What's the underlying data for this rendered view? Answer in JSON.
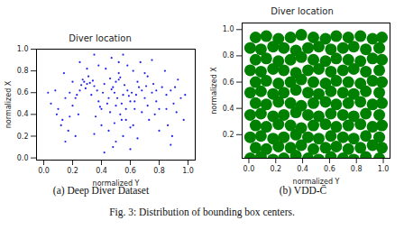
{
  "chart_data": [
    {
      "type": "scatter",
      "title": "Diver location",
      "caption": "(a) Deep Diver Dataset",
      "xlabel": "normalized Y",
      "ylabel": "normalized X",
      "color": "#2222ee",
      "xlim": [
        -0.05,
        1.05
      ],
      "ylim": [
        -0.02,
        1.0
      ],
      "xticks": [
        {
          "value": 0,
          "label": "0.0"
        },
        {
          "value": 0.2,
          "label": "0.2"
        },
        {
          "value": 0.4,
          "label": "0.4"
        },
        {
          "value": 0.6,
          "label": "0.6"
        },
        {
          "value": 0.8,
          "label": "0.8"
        },
        {
          "value": 1,
          "label": "1.0"
        }
      ],
      "yticks": [
        {
          "value": 0,
          "label": "0.0"
        },
        {
          "value": 0.2,
          "label": "0.2"
        },
        {
          "value": 0.4,
          "label": "0.4"
        },
        {
          "value": 0.6,
          "label": "0.6"
        },
        {
          "value": 0.8,
          "label": "0.8"
        },
        {
          "value": 1,
          "label": "1.0"
        }
      ],
      "x": [
        0.52,
        0.48,
        0.55,
        0.6,
        0.45,
        0.5,
        0.58,
        0.42,
        0.63,
        0.53,
        0.3,
        0.28,
        0.35,
        0.25,
        0.33,
        0.38,
        0.22,
        0.4,
        0.36,
        0.31,
        0.7,
        0.72,
        0.75,
        0.68,
        0.78,
        0.66,
        0.8,
        0.73,
        0.85,
        0.62,
        0.1,
        0.15,
        0.08,
        0.18,
        0.12,
        0.05,
        0.2,
        0.14,
        0.17,
        0.09,
        0.9,
        0.88,
        0.92,
        0.95,
        0.86,
        0.93,
        0.84,
        0.97,
        0.89,
        0.91,
        0.45,
        0.55,
        0.5,
        0.4,
        0.6,
        0.35,
        0.65,
        0.48,
        0.57,
        0.43,
        0.52,
        0.58,
        0.47,
        0.62,
        0.38,
        0.3,
        0.7,
        0.25,
        0.75,
        0.55,
        0.5,
        0.53,
        0.49,
        0.56,
        0.51,
        0.47,
        0.54,
        0.52,
        0.46,
        0.59,
        0.27,
        0.32,
        0.29,
        0.34,
        0.26,
        0.65,
        0.68,
        0.71,
        0.64,
        0.76,
        0.03,
        0.98,
        0.22,
        0.8,
        0.42,
        0.6,
        0.15,
        0.88,
        0.35,
        0.67,
        0.44,
        0.41,
        0.57,
        0.61,
        0.39,
        0.46,
        0.63,
        0.37,
        0.54,
        0.49,
        0.2,
        0.23,
        0.18,
        0.82,
        0.78,
        0.77,
        0.24,
        0.13,
        0.85,
        0.72
      ],
      "y": [
        0.72,
        0.65,
        0.58,
        0.52,
        0.55,
        0.48,
        0.62,
        0.68,
        0.45,
        0.4,
        0.68,
        0.7,
        0.66,
        0.62,
        0.58,
        0.52,
        0.55,
        0.45,
        0.38,
        0.75,
        0.55,
        0.48,
        0.6,
        0.42,
        0.52,
        0.65,
        0.45,
        0.35,
        0.58,
        0.3,
        0.45,
        0.55,
        0.62,
        0.38,
        0.3,
        0.5,
        0.7,
        0.78,
        0.25,
        0.4,
        0.5,
        0.62,
        0.42,
        0.55,
        0.3,
        0.72,
        0.8,
        0.35,
        0.2,
        0.65,
        0.25,
        0.2,
        0.15,
        0.3,
        0.28,
        0.22,
        0.18,
        0.1,
        0.35,
        0.82,
        0.88,
        0.85,
        0.92,
        0.8,
        0.85,
        0.82,
        0.78,
        0.88,
        0.9,
        0.95,
        0.7,
        0.74,
        0.6,
        0.67,
        0.55,
        0.63,
        0.5,
        0.78,
        0.73,
        0.57,
        0.72,
        0.69,
        0.64,
        0.71,
        0.67,
        0.7,
        0.62,
        0.66,
        0.58,
        0.68,
        0.6,
        0.58,
        0.2,
        0.25,
        0.05,
        0.08,
        0.15,
        0.12,
        0.95,
        0.88,
        0.5,
        0.6,
        0.45,
        0.6,
        0.47,
        0.42,
        0.52,
        0.62,
        0.35,
        0.32,
        0.48,
        0.58,
        0.6,
        0.65,
        0.62,
        0.4,
        0.4,
        0.35,
        0.45,
        0.75
      ]
    },
    {
      "type": "scatter",
      "title": "Diver location",
      "caption": "(b) VDD-C̄",
      "xlabel": "normalized Y",
      "ylabel": "normalized X",
      "color": "#008000",
      "xlim": [
        -0.05,
        1.05
      ],
      "ylim": [
        0.02,
        1.05
      ],
      "xticks": [
        {
          "value": 0,
          "label": "0.0"
        },
        {
          "value": 0.2,
          "label": "0.2"
        },
        {
          "value": 0.4,
          "label": "0.4"
        },
        {
          "value": 0.6,
          "label": "0.6"
        },
        {
          "value": 0.8,
          "label": "0.8"
        },
        {
          "value": 1,
          "label": "1.0"
        }
      ],
      "yticks": [
        {
          "value": 0.2,
          "label": "0.2"
        },
        {
          "value": 0.4,
          "label": "0.4"
        },
        {
          "value": 0.6,
          "label": "0.6"
        },
        {
          "value": 0.8,
          "label": "0.8"
        },
        {
          "value": 1,
          "label": "1.0"
        }
      ],
      "x": [
        0.01,
        0.09,
        0.18,
        0.26,
        0.35,
        0.44,
        0.52,
        0.61,
        0.7,
        0.78,
        0.87,
        0.97,
        0.05,
        0.13,
        0.22,
        0.31,
        0.39,
        0.48,
        0.57,
        0.65,
        0.74,
        0.83,
        0.92,
        0.99,
        0.01,
        0.09,
        0.18,
        0.26,
        0.35,
        0.44,
        0.52,
        0.61,
        0.7,
        0.78,
        0.87,
        0.97,
        0.05,
        0.13,
        0.22,
        0.31,
        0.39,
        0.48,
        0.57,
        0.65,
        0.74,
        0.83,
        0.92,
        0.99,
        0.01,
        0.09,
        0.18,
        0.26,
        0.35,
        0.44,
        0.52,
        0.61,
        0.7,
        0.78,
        0.87,
        0.97,
        0.05,
        0.13,
        0.22,
        0.31,
        0.39,
        0.48,
        0.57,
        0.65,
        0.74,
        0.83,
        0.92,
        0.99,
        0.01,
        0.09,
        0.18,
        0.26,
        0.35,
        0.44,
        0.52,
        0.61,
        0.7,
        0.78,
        0.87,
        0.97,
        0.05,
        0.13,
        0.22,
        0.31,
        0.39,
        0.48,
        0.57,
        0.65,
        0.74,
        0.83,
        0.92,
        0.99,
        0.01,
        0.09,
        0.18,
        0.26,
        0.35,
        0.44,
        0.52,
        0.61,
        0.7,
        0.78,
        0.87,
        0.97,
        0.05,
        0.13,
        0.22,
        0.31,
        0.39,
        0.48,
        0.57,
        0.65,
        0.74,
        0.83,
        0.92,
        0.99,
        0.01,
        0.09,
        0.18,
        0.26,
        0.35,
        0.44,
        0.52,
        0.61,
        0.7,
        0.78,
        0.87,
        0.97,
        0.05,
        0.13,
        0.22,
        0.31,
        0.39,
        0.48,
        0.57,
        0.65,
        0.74,
        0.83,
        0.92,
        0.99
      ],
      "y": [
        0.02,
        0.03,
        0.01,
        0.02,
        0.04,
        0.02,
        0.01,
        0.03,
        0.02,
        0.01,
        0.03,
        0.02,
        0.1,
        0.09,
        0.11,
        0.1,
        0.12,
        0.09,
        0.1,
        0.11,
        0.09,
        0.1,
        0.12,
        0.1,
        0.18,
        0.19,
        0.17,
        0.18,
        0.2,
        0.18,
        0.17,
        0.19,
        0.18,
        0.17,
        0.19,
        0.18,
        0.27,
        0.26,
        0.28,
        0.27,
        0.25,
        0.27,
        0.28,
        0.26,
        0.27,
        0.28,
        0.26,
        0.27,
        0.35,
        0.36,
        0.34,
        0.35,
        0.37,
        0.35,
        0.34,
        0.36,
        0.35,
        0.34,
        0.36,
        0.35,
        0.44,
        0.43,
        0.45,
        0.44,
        0.42,
        0.44,
        0.45,
        0.43,
        0.44,
        0.45,
        0.43,
        0.44,
        0.52,
        0.53,
        0.51,
        0.52,
        0.54,
        0.52,
        0.51,
        0.53,
        0.52,
        0.51,
        0.53,
        0.52,
        0.6,
        0.61,
        0.59,
        0.6,
        0.62,
        0.6,
        0.59,
        0.61,
        0.6,
        0.59,
        0.61,
        0.6,
        0.69,
        0.68,
        0.7,
        0.69,
        0.67,
        0.69,
        0.7,
        0.68,
        0.69,
        0.7,
        0.68,
        0.69,
        0.77,
        0.78,
        0.76,
        0.77,
        0.79,
        0.77,
        0.76,
        0.78,
        0.77,
        0.76,
        0.78,
        0.77,
        0.86,
        0.85,
        0.87,
        0.86,
        0.84,
        0.86,
        0.87,
        0.85,
        0.86,
        0.87,
        0.85,
        0.86,
        0.94,
        0.95,
        0.93,
        0.94,
        0.96,
        0.94,
        0.93,
        0.95,
        0.94,
        0.95,
        0.93,
        0.94
      ]
    }
  ],
  "caption": "Fig. 3: Distribution of bounding box centers."
}
